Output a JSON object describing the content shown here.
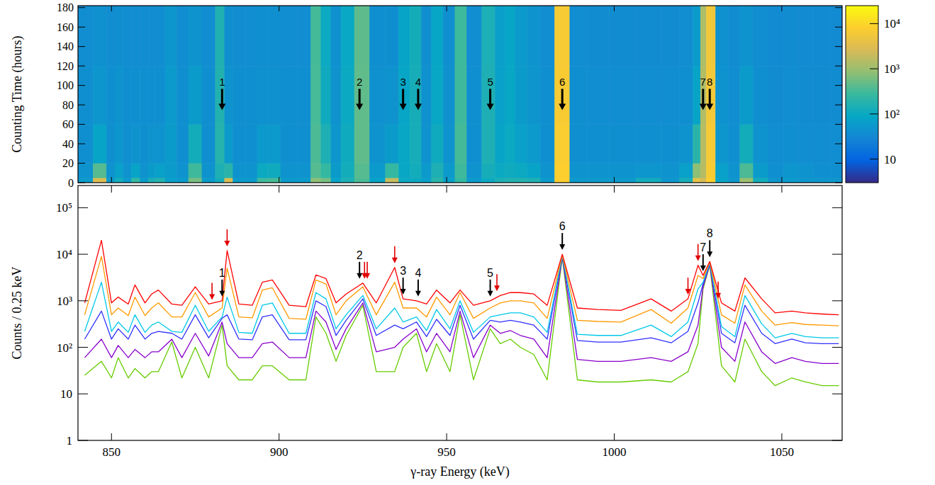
{
  "chart_data": [
    {
      "type": "heatmap",
      "y_label": "Counting Time (hours)",
      "x": [
        842,
        847,
        850,
        852,
        855,
        857,
        860,
        862,
        864,
        868,
        871,
        875,
        879,
        883,
        884.5,
        888,
        892,
        895,
        898,
        903,
        908,
        911,
        914,
        917,
        920,
        925,
        929,
        934.5,
        937,
        941,
        944,
        947,
        951,
        954,
        958,
        963,
        966,
        969,
        972,
        976,
        980,
        984.5,
        989,
        995,
        1002,
        1011,
        1017,
        1022,
        1025,
        1026.5,
        1028.5,
        1032,
        1036,
        1039,
        1044,
        1048,
        1053,
        1057,
        1062,
        1067
      ],
      "y_edges": [
        0,
        5,
        20,
        60,
        120,
        182
      ],
      "cells": [
        [
          60,
          3000,
          60,
          120,
          60,
          250,
          60,
          150,
          180,
          70,
          60,
          600,
          60,
          120,
          3000,
          60,
          60,
          300,
          330,
          60,
          60,
          800,
          600,
          80,
          150,
          350,
          80,
          2000,
          100,
          100,
          70,
          200,
          70,
          250,
          60,
          100,
          150,
          170,
          170,
          160,
          60,
          8000,
          55,
          55,
          55,
          120,
          50,
          130,
          4000,
          2500,
          8000,
          80,
          50,
          1000,
          120,
          50,
          60,
          50,
          50,
          50
        ],
        [
          45,
          400,
          45,
          70,
          45,
          80,
          45,
          60,
          70,
          60,
          45,
          300,
          45,
          150,
          200,
          45,
          45,
          100,
          110,
          45,
          45,
          400,
          250,
          60,
          120,
          400,
          55,
          250,
          90,
          120,
          55,
          150,
          55,
          300,
          45,
          130,
          100,
          110,
          100,
          80,
          45,
          8000,
          45,
          45,
          45,
          50,
          45,
          70,
          800,
          1500,
          7000,
          70,
          45,
          350,
          60,
          40,
          50,
          45,
          40,
          40
        ],
        [
          40,
          80,
          40,
          50,
          40,
          45,
          40,
          45,
          45,
          60,
          40,
          120,
          40,
          180,
          60,
          40,
          40,
          55,
          55,
          40,
          40,
          350,
          150,
          50,
          110,
          450,
          45,
          60,
          90,
          130,
          45,
          110,
          45,
          320,
          40,
          150,
          80,
          100,
          70,
          55,
          40,
          7500,
          40,
          40,
          40,
          40,
          40,
          45,
          200,
          1500,
          6500,
          50,
          40,
          120,
          45,
          38,
          40,
          38,
          38,
          38
        ],
        [
          40,
          50,
          40,
          45,
          40,
          40,
          40,
          40,
          40,
          55,
          40,
          60,
          40,
          170,
          45,
          40,
          40,
          42,
          42,
          40,
          40,
          330,
          110,
          45,
          100,
          450,
          42,
          45,
          85,
          130,
          42,
          90,
          42,
          300,
          40,
          150,
          70,
          90,
          60,
          48,
          40,
          7000,
          40,
          38,
          38,
          38,
          38,
          40,
          80,
          1400,
          6000,
          45,
          38,
          60,
          40,
          36,
          38,
          36,
          36,
          36
        ],
        [
          38,
          42,
          38,
          40,
          38,
          38,
          38,
          38,
          38,
          50,
          38,
          45,
          38,
          160,
          40,
          38,
          38,
          40,
          40,
          38,
          38,
          320,
          100,
          42,
          95,
          440,
          40,
          40,
          80,
          125,
          40,
          85,
          40,
          290,
          38,
          145,
          65,
          85,
          55,
          45,
          38,
          6800,
          38,
          36,
          36,
          36,
          36,
          38,
          60,
          1300,
          5800,
          42,
          36,
          45,
          38,
          35,
          36,
          35,
          35,
          35
        ]
      ],
      "xlim": [
        840,
        1068
      ],
      "ylim": [
        0,
        182
      ],
      "xticks": [
        850,
        900,
        950,
        1000,
        1050
      ],
      "yticks": [
        0,
        20,
        40,
        60,
        80,
        100,
        120,
        140,
        160,
        180
      ],
      "tick_labels": "y",
      "grid": false,
      "colorbar": {
        "range": [
          3,
          25000
        ],
        "log": true,
        "ticks": [
          10,
          {
            "value": 100,
            "label": "10²"
          },
          {
            "value": 1000,
            "label": "10³"
          },
          {
            "value": 10000,
            "label": "10⁴"
          }
        ]
      },
      "annotations": [
        {
          "text": "1",
          "x": 883
        },
        {
          "text": "2",
          "x": 924
        },
        {
          "text": "3",
          "x": 937
        },
        {
          "text": "4",
          "x": 941.5
        },
        {
          "text": "5",
          "x": 963
        },
        {
          "text": "6",
          "x": 984.5
        },
        {
          "text": "7",
          "x": 1026.5
        },
        {
          "text": "8",
          "x": 1028.5
        }
      ]
    },
    {
      "type": "line",
      "x_label": "γ-ray Energy (keV)",
      "y_label": "Counts / 0.25 keV",
      "x": [
        842,
        847,
        850,
        852,
        855,
        857,
        860,
        862,
        864,
        868,
        871,
        875,
        879,
        883,
        884.5,
        888,
        892,
        895,
        898,
        903,
        908,
        911,
        914,
        917,
        920,
        925,
        929,
        934.5,
        937,
        941,
        944,
        947,
        951,
        954,
        958,
        963,
        966,
        969,
        972,
        976,
        980,
        984.5,
        989,
        995,
        1002,
        1011,
        1017,
        1022,
        1025,
        1026.5,
        1028.5,
        1032,
        1036,
        1039,
        1044,
        1048,
        1053,
        1057,
        1062,
        1067
      ],
      "series": [
        {
          "color": "#ff0000",
          "values": [
            900,
            20000,
            900,
            1200,
            850,
            2200,
            900,
            1400,
            1700,
            850,
            800,
            2000,
            850,
            1000,
            12000,
            850,
            800,
            2500,
            2800,
            800,
            750,
            3600,
            3000,
            900,
            1400,
            2400,
            900,
            5200,
            1100,
            1000,
            850,
            1700,
            900,
            1700,
            800,
            1000,
            1300,
            1500,
            1500,
            1400,
            800,
            10000,
            700,
            650,
            620,
            1100,
            600,
            1100,
            5800,
            3500,
            7000,
            900,
            600,
            3100,
            1100,
            550,
            600,
            550,
            520,
            500
          ]
        },
        {
          "color": "#ff9900",
          "values": [
            500,
            9000,
            500,
            700,
            480,
            1200,
            480,
            700,
            900,
            450,
            450,
            1500,
            450,
            700,
            5000,
            450,
            430,
            1700,
            1900,
            420,
            400,
            2800,
            2300,
            500,
            1000,
            2000,
            500,
            2500,
            700,
            700,
            450,
            1200,
            500,
            1500,
            420,
            700,
            900,
            1000,
            1000,
            900,
            420,
            9600,
            380,
            360,
            350,
            650,
            330,
            700,
            3500,
            3000,
            6800,
            500,
            330,
            2200,
            600,
            300,
            340,
            310,
            300,
            290
          ]
        },
        {
          "color": "#00c8e8",
          "values": [
            220,
            2500,
            220,
            350,
            210,
            500,
            210,
            300,
            350,
            220,
            210,
            800,
            220,
            450,
            1200,
            210,
            200,
            800,
            900,
            200,
            200,
            1500,
            1100,
            250,
            500,
            1300,
            250,
            700,
            350,
            450,
            230,
            650,
            250,
            1000,
            210,
            450,
            500,
            550,
            550,
            450,
            210,
            9200,
            190,
            180,
            180,
            300,
            170,
            350,
            1800,
            2500,
            6500,
            280,
            170,
            1300,
            320,
            160,
            200,
            170,
            160,
            160
          ]
        },
        {
          "color": "#3030ff",
          "values": [
            150,
            600,
            150,
            250,
            150,
            300,
            150,
            200,
            220,
            200,
            150,
            500,
            160,
            420,
            500,
            150,
            145,
            450,
            500,
            145,
            145,
            1000,
            750,
            180,
            380,
            1100,
            180,
            300,
            250,
            350,
            170,
            400,
            180,
            800,
            150,
            380,
            350,
            380,
            350,
            300,
            150,
            9000,
            140,
            130,
            130,
            160,
            125,
            220,
            900,
            2300,
            6300,
            200,
            125,
            800,
            200,
            120,
            150,
            125,
            120,
            120
          ]
        },
        {
          "color": "#8800cc",
          "values": [
            60,
            150,
            60,
            110,
            60,
            90,
            60,
            80,
            80,
            150,
            60,
            200,
            65,
            350,
            120,
            60,
            60,
            120,
            130,
            60,
            60,
            600,
            350,
            90,
            250,
            900,
            80,
            100,
            150,
            250,
            80,
            200,
            80,
            600,
            60,
            300,
            200,
            230,
            180,
            150,
            60,
            8800,
            55,
            50,
            50,
            60,
            50,
            80,
            300,
            2000,
            6000,
            100,
            50,
            350,
            80,
            45,
            60,
            50,
            45,
            45
          ]
        },
        {
          "color": "#66cc00",
          "values": [
            25,
            50,
            22,
            60,
            22,
            35,
            22,
            30,
            30,
            130,
            22,
            100,
            22,
            300,
            40,
            20,
            20,
            40,
            40,
            20,
            20,
            450,
            200,
            50,
            180,
            800,
            30,
            30,
            100,
            200,
            30,
            120,
            30,
            500,
            20,
            250,
            120,
            150,
            100,
            70,
            20,
            8500,
            20,
            18,
            18,
            20,
            18,
            30,
            120,
            1800,
            5800,
            40,
            18,
            150,
            30,
            15,
            22,
            18,
            15,
            15
          ]
        }
      ],
      "xlim": [
        840,
        1068
      ],
      "ylim": [
        1,
        300000
      ],
      "log": "y",
      "grid": false,
      "xticks": [
        850,
        900,
        950,
        1000,
        1050
      ],
      "yticks": [
        1,
        10,
        {
          "value": 100,
          "label": "10²"
        },
        {
          "value": 1000,
          "label": "10³"
        },
        {
          "value": 10000,
          "label": "10⁴"
        },
        {
          "value": 100000,
          "label": "10⁵"
        }
      ],
      "annotations": [
        {
          "text": "1",
          "x": 883
        },
        {
          "text": "2",
          "x": 924
        },
        {
          "text": "3",
          "x": 937
        },
        {
          "text": "4",
          "x": 941.5
        },
        {
          "text": "5",
          "x": 963
        },
        {
          "text": "6",
          "x": 984.5
        },
        {
          "text": "7",
          "x": 1026.5
        },
        {
          "text": "8",
          "x": 1028.5
        },
        {
          "x": 880,
          "color": "red"
        },
        {
          "x": 884.5,
          "color": "red"
        },
        {
          "x": 925.5,
          "color": "red"
        },
        {
          "x": 926.3,
          "color": "red"
        },
        {
          "x": 934.5,
          "color": "red"
        },
        {
          "x": 965,
          "color": "red"
        },
        {
          "x": 1022,
          "color": "red"
        },
        {
          "x": 1025,
          "color": "red"
        },
        {
          "x": 1031,
          "color": "red"
        }
      ]
    }
  ]
}
